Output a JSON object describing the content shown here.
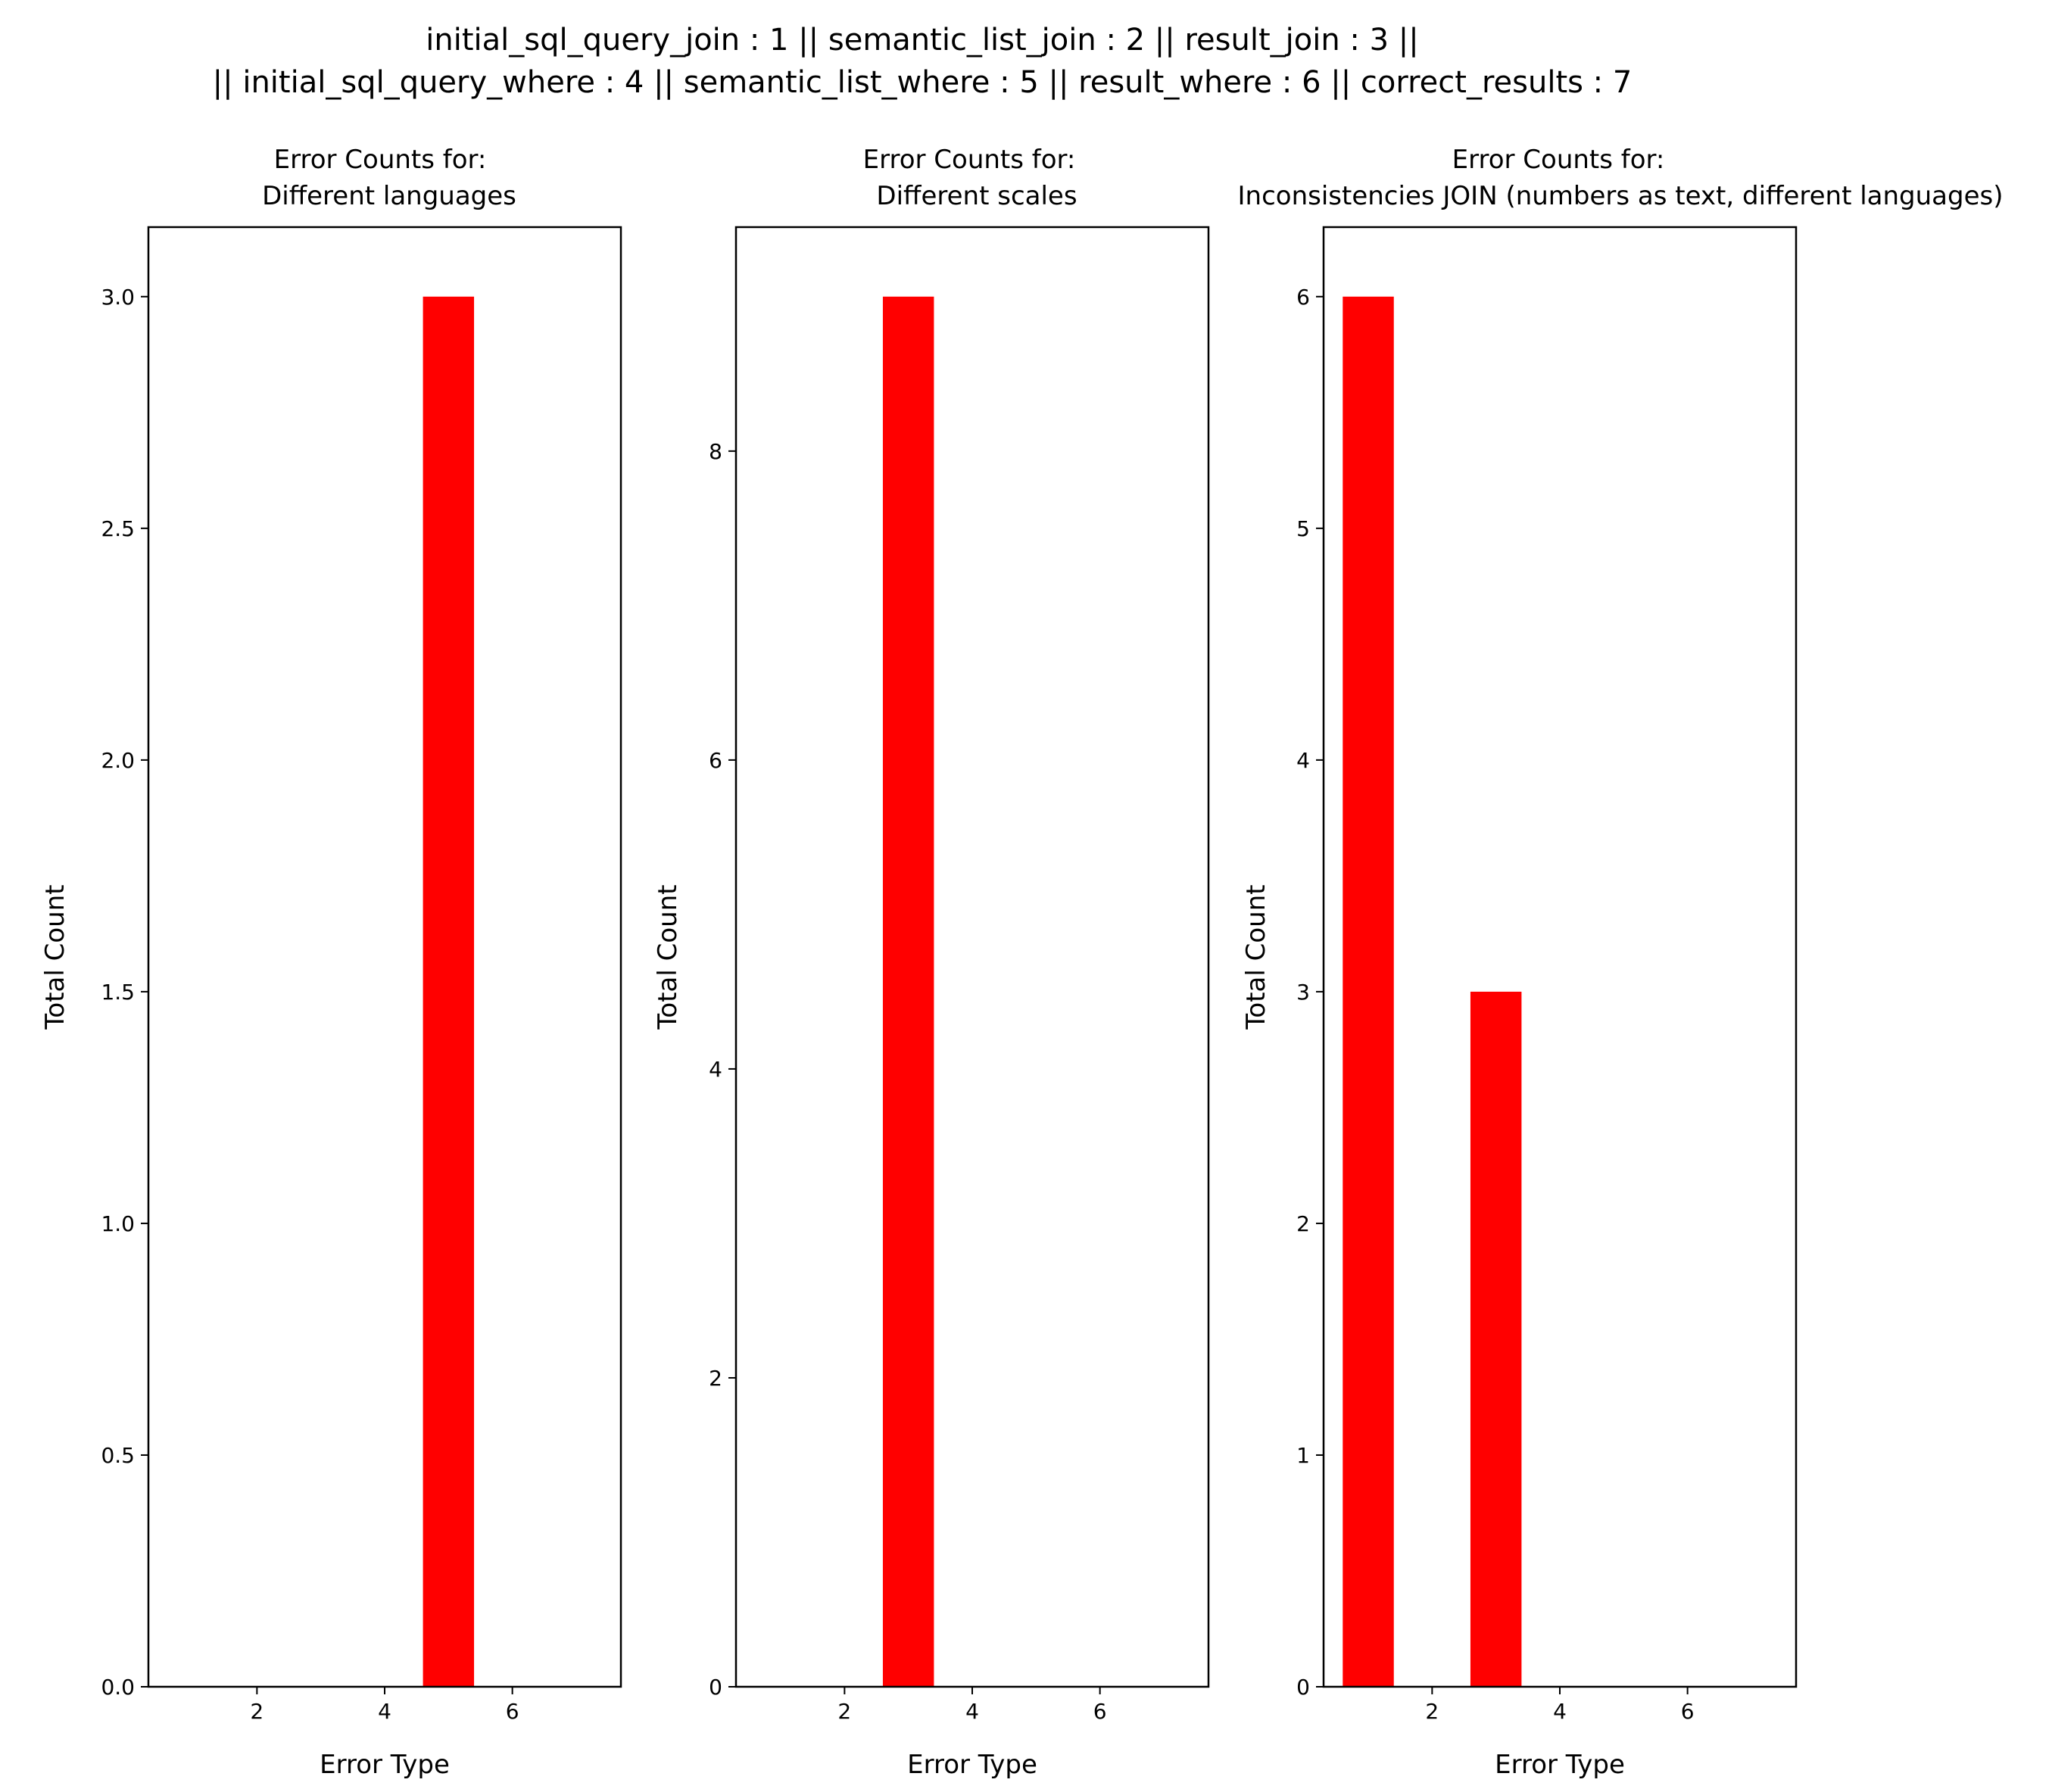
{
  "figure": {
    "suptitle_lines": [
      "initial_sql_query_join : 1 || semantic_list_join : 2 || result_join : 3 ||",
      "|| initial_sql_query_where : 4 || semantic_list_where : 5 || result_where : 6 || correct_results : 7"
    ]
  },
  "colors": {
    "bar": "#ff0000",
    "axis": "#000000"
  },
  "chart_data": [
    {
      "type": "bar",
      "title_lines": [
        "Error Counts for:",
        "Different languages"
      ],
      "xlabel": "Error Type",
      "ylabel": "Total Count",
      "xlim": [
        0.3,
        7.7
      ],
      "ylim": [
        0,
        3.15
      ],
      "xticks": [
        2,
        4,
        6
      ],
      "yticks": [
        0.0,
        0.5,
        1.0,
        1.5,
        2.0,
        2.5,
        3.0
      ],
      "ytick_labels": [
        "0.0",
        "0.5",
        "1.0",
        "1.5",
        "2.0",
        "2.5",
        "3.0"
      ],
      "bar_width": 0.8,
      "x": [
        1,
        2,
        3,
        4,
        5,
        6,
        7
      ],
      "values": [
        0,
        0,
        0,
        0,
        3,
        0,
        0
      ]
    },
    {
      "type": "bar",
      "title_lines": [
        "Error Counts for:",
        "Different scales"
      ],
      "xlabel": "Error Type",
      "ylabel": "Total Count",
      "xlim": [
        0.3,
        7.7
      ],
      "ylim": [
        0,
        9.45
      ],
      "xticks": [
        2,
        4,
        6
      ],
      "yticks": [
        0,
        2,
        4,
        6,
        8
      ],
      "ytick_labels": [
        "0",
        "2",
        "4",
        "6",
        "8"
      ],
      "bar_width": 0.8,
      "x": [
        1,
        2,
        3,
        4,
        5,
        6,
        7
      ],
      "values": [
        0,
        0,
        9,
        0,
        0,
        0,
        0
      ]
    },
    {
      "type": "bar",
      "title_lines": [
        "Error Counts for:",
        "Inconsistencies JOIN (numbers as text, different languages)"
      ],
      "xlabel": "Error Type",
      "ylabel": "Total Count",
      "xlim": [
        0.3,
        7.7
      ],
      "ylim": [
        0,
        6.3
      ],
      "xticks": [
        2,
        4,
        6
      ],
      "yticks": [
        0,
        1,
        2,
        3,
        4,
        5,
        6
      ],
      "ytick_labels": [
        "0",
        "1",
        "2",
        "3",
        "4",
        "5",
        "6"
      ],
      "bar_width": 0.8,
      "x": [
        1,
        2,
        3,
        4,
        5,
        6,
        7
      ],
      "values": [
        6,
        0,
        3,
        0,
        0,
        0,
        0
      ]
    }
  ]
}
